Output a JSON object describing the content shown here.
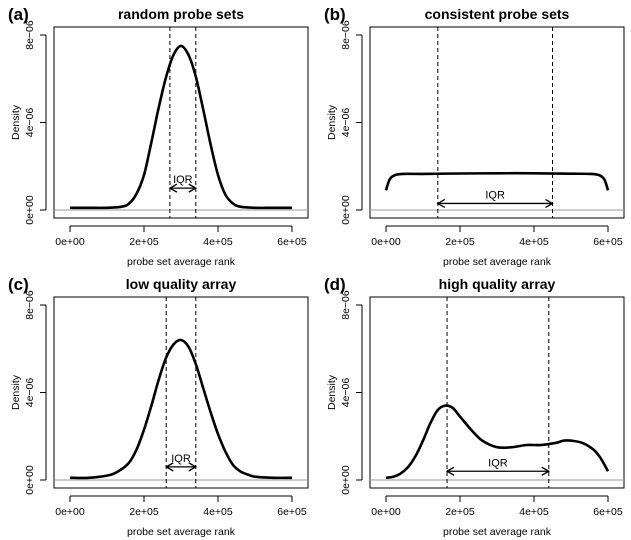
{
  "chart_data": [
    {
      "type": "line",
      "panel_label": "(a)",
      "title": "random probe sets",
      "xlabel": "probe set average rank",
      "ylabel": "Density",
      "xlim": [
        0,
        600000
      ],
      "ylim": [
        0,
        8e-06
      ],
      "xticks": [
        "0e+00",
        "2e+05",
        "4e+05",
        "6e+05"
      ],
      "yticks": [
        "0e+00",
        "4e−06",
        "8e−06"
      ],
      "series": [
        {
          "x": [
            0,
            50000,
            100000,
            140000,
            160000,
            180000,
            200000,
            220000,
            240000,
            260000,
            280000,
            300000,
            320000,
            340000,
            360000,
            380000,
            400000,
            420000,
            440000,
            460000,
            500000,
            550000,
            600000
          ],
          "y": [
            1e-07,
            1e-07,
            1e-07,
            1.5e-07,
            3e-07,
            7.5e-07,
            1.6e-06,
            3.1e-06,
            4.7e-06,
            6.1e-06,
            7.1e-06,
            7.5e-06,
            7.1e-06,
            6.1e-06,
            4.6e-06,
            3e-06,
            1.6e-06,
            7e-07,
            3e-07,
            1.5e-07,
            1e-07,
            1e-07,
            1e-07
          ]
        }
      ],
      "quartiles": [
        270000,
        340000
      ],
      "iqr_label": "IQR",
      "iqr_y": 1e-06
    },
    {
      "type": "line",
      "panel_label": "(b)",
      "title": "consistent probe sets",
      "xlabel": "probe set average rank",
      "ylabel": "Density",
      "xlim": [
        0,
        600000
      ],
      "ylim": [
        0,
        8e-06
      ],
      "xticks": [
        "0e+00",
        "2e+05",
        "4e+05",
        "6e+05"
      ],
      "yticks": [
        "0e+00",
        "4e−06",
        "8e−06"
      ],
      "series": [
        {
          "x": [
            0,
            10000,
            25000,
            50000,
            100000,
            200000,
            300000,
            400000,
            500000,
            550000,
            575000,
            590000,
            600000
          ],
          "y": [
            9e-07,
            1.4e-06,
            1.6e-06,
            1.65e-06,
            1.65e-06,
            1.67e-06,
            1.68e-06,
            1.68e-06,
            1.66e-06,
            1.65e-06,
            1.6e-06,
            1.4e-06,
            9e-07
          ]
        }
      ],
      "quartiles": [
        140000,
        450000
      ],
      "iqr_label": "IQR",
      "iqr_y": 3e-07
    },
    {
      "type": "line",
      "panel_label": "(c)",
      "title": "low quality array",
      "xlabel": "probe set average rank",
      "ylabel": "Density",
      "xlim": [
        0,
        600000
      ],
      "ylim": [
        0,
        8e-06
      ],
      "xticks": [
        "0e+00",
        "2e+05",
        "4e+05",
        "6e+05"
      ],
      "yticks": [
        "0e+00",
        "4e−06",
        "8e−06"
      ],
      "series": [
        {
          "x": [
            0,
            50000,
            100000,
            120000,
            140000,
            160000,
            180000,
            200000,
            220000,
            240000,
            260000,
            280000,
            300000,
            320000,
            340000,
            360000,
            380000,
            400000,
            420000,
            440000,
            460000,
            480000,
            500000,
            550000,
            600000
          ],
          "y": [
            1e-07,
            1e-07,
            2e-07,
            3e-07,
            5e-07,
            8e-07,
            1.4e-06,
            2.3e-06,
            3.4e-06,
            4.6e-06,
            5.6e-06,
            6.2e-06,
            6.4e-06,
            6.1e-06,
            5.3e-06,
            4.2e-06,
            3.1e-06,
            2.1e-06,
            1.3e-06,
            7e-07,
            4e-07,
            2.5e-07,
            1.5e-07,
            1e-07,
            1e-07
          ]
        }
      ],
      "quartiles": [
        260000,
        340000
      ],
      "iqr_label": "IQR",
      "iqr_y": 6e-07
    },
    {
      "type": "line",
      "panel_label": "(d)",
      "title": "high quality array",
      "xlabel": "probe set average rank",
      "ylabel": "Density",
      "xlim": [
        0,
        600000
      ],
      "ylim": [
        0,
        8e-06
      ],
      "xticks": [
        "0e+00",
        "2e+05",
        "4e+05",
        "6e+05"
      ],
      "yticks": [
        "0e+00",
        "4e−06",
        "8e−06"
      ],
      "series": [
        {
          "x": [
            0,
            20000,
            40000,
            60000,
            80000,
            100000,
            120000,
            140000,
            160000,
            180000,
            200000,
            230000,
            260000,
            300000,
            340000,
            380000,
            420000,
            460000,
            480000,
            500000,
            530000,
            560000,
            580000,
            600000
          ],
          "y": [
            1e-07,
            1.5e-07,
            3e-07,
            6e-07,
            1.1e-06,
            1.8e-06,
            2.6e-06,
            3.2e-06,
            3.4e-06,
            3.3e-06,
            2.9e-06,
            2.3e-06,
            1.8e-06,
            1.5e-06,
            1.5e-06,
            1.6e-06,
            1.6e-06,
            1.7e-06,
            1.8e-06,
            1.8e-06,
            1.7e-06,
            1.4e-06,
            1e-06,
            4e-07
          ]
        }
      ],
      "quartiles": [
        165000,
        440000
      ],
      "iqr_label": "IQR",
      "iqr_y": 4e-07
    }
  ]
}
